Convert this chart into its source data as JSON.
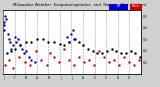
{
  "title": "Milwaukee Weather  Evapotranspiration  and  Rain per Day",
  "bg_color": "#d0d0d0",
  "plot_bg": "#ffffff",
  "et_color": "#0000cc",
  "rain_color": "#cc0000",
  "black_color": "#000000",
  "ylim": [
    0.0,
    0.55
  ],
  "yticks": [
    0.1,
    0.2,
    0.3,
    0.4,
    0.5
  ],
  "legend_et": "ET",
  "legend_rain": "Rain",
  "marker_size": 3.0,
  "vline_color": "#999999",
  "vline_style": "--",
  "month_starts": [
    0,
    31,
    59,
    90,
    120,
    151,
    181,
    212,
    243,
    273,
    304,
    334,
    365
  ],
  "et_x": [
    1,
    2,
    3,
    5,
    8,
    12,
    15,
    18,
    20,
    25,
    30,
    35,
    40,
    45,
    50,
    55,
    60,
    68,
    75,
    85,
    170,
    175,
    180,
    185,
    190
  ],
  "et_y": [
    0.42,
    0.38,
    0.45,
    0.5,
    0.48,
    0.35,
    0.3,
    0.28,
    0.22,
    0.25,
    0.32,
    0.28,
    0.3,
    0.25,
    0.22,
    0.18,
    0.2,
    0.15,
    0.12,
    0.1,
    0.32,
    0.28,
    0.35,
    0.38,
    0.3
  ],
  "rain_x": [
    5,
    15,
    25,
    42,
    58,
    72,
    88,
    100,
    115,
    125,
    135,
    148,
    160,
    175,
    188,
    200,
    215,
    228,
    240,
    255,
    268,
    280,
    295,
    308,
    320,
    335,
    348,
    360
  ],
  "rain_y": [
    0.08,
    0.12,
    0.05,
    0.15,
    0.1,
    0.08,
    0.2,
    0.12,
    0.08,
    0.18,
    0.15,
    0.1,
    0.22,
    0.12,
    0.08,
    0.15,
    0.1,
    0.12,
    0.08,
    0.2,
    0.15,
    0.1,
    0.12,
    0.08,
    0.15,
    0.1,
    0.08,
    0.12
  ],
  "black_x": [
    10,
    20,
    30,
    45,
    60,
    75,
    90,
    105,
    120,
    135,
    150,
    162,
    175,
    188,
    200,
    212,
    225,
    238,
    250,
    262,
    275,
    288,
    300,
    312,
    325,
    338,
    350,
    362
  ],
  "black_y": [
    0.18,
    0.2,
    0.22,
    0.25,
    0.28,
    0.28,
    0.3,
    0.3,
    0.28,
    0.28,
    0.26,
    0.25,
    0.28,
    0.3,
    0.28,
    0.25,
    0.22,
    0.2,
    0.18,
    0.18,
    0.2,
    0.22,
    0.2,
    0.18,
    0.18,
    0.2,
    0.18,
    0.15
  ]
}
